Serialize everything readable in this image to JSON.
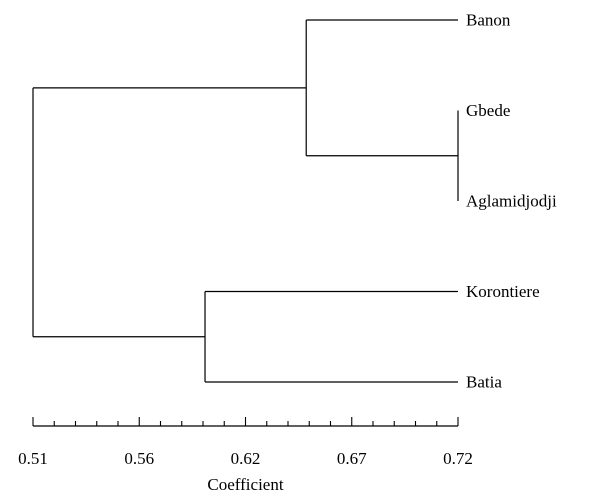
{
  "chart_data": {
    "type": "dendrogram",
    "leaves": [
      "Banon",
      "Gbede",
      "Aglamidjodji",
      "Korontiere",
      "Batia"
    ],
    "merges": [
      {
        "id": "n1",
        "children": [
          "Gbede",
          "Aglamidjodji"
        ],
        "height": 0.72
      },
      {
        "id": "n2",
        "children": [
          "Banon",
          "n1"
        ],
        "height": 0.645
      },
      {
        "id": "n3",
        "children": [
          "Korontiere",
          "Batia"
        ],
        "height": 0.595
      },
      {
        "id": "n4",
        "children": [
          "n2",
          "n3"
        ],
        "height": 0.51
      }
    ],
    "xaxis": {
      "label": "Coefficient",
      "range": [
        0.51,
        0.72
      ],
      "major_ticks": [
        0.51,
        0.56,
        0.62,
        0.67,
        0.72
      ],
      "tick_labels": [
        "0.51",
        "0.56",
        "0.62",
        "0.67",
        "0.72"
      ],
      "minor_ticks_between_major": 4
    }
  }
}
